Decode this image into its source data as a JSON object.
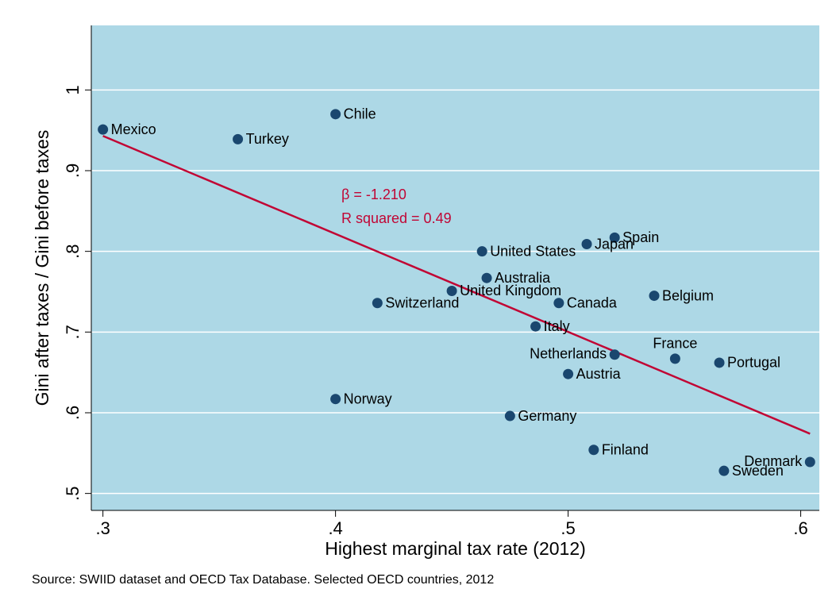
{
  "chart_data": {
    "type": "scatter",
    "x_label": "Highest marginal tax rate (2012)",
    "y_label": "Gini after taxes / Gini before taxes",
    "note": "Source: SWIID dataset and OECD Tax Database. Selected OECD countries, 2012",
    "series": [
      {
        "color": "#1a476f",
        "labels": [
          "Mexico",
          "Chile",
          "Turkey",
          "Spain",
          "Japan",
          "United States",
          "Australia",
          "United Kingdom",
          "Switzerland",
          "Canada",
          "Belgium",
          "Italy",
          "Netherlands",
          "France",
          "Portugal",
          "Austria",
          "Norway",
          "Germany",
          "Finland",
          "Denmark",
          "Sweden"
        ],
        "x": [
          0.3,
          0.4,
          0.358,
          0.52,
          0.508,
          0.463,
          0.465,
          0.45,
          0.418,
          0.496,
          0.537,
          0.486,
          0.52,
          0.546,
          0.565,
          0.5,
          0.4,
          0.475,
          0.511,
          0.604,
          0.567
        ],
        "values": [
          0.951,
          0.97,
          0.939,
          0.817,
          0.809,
          0.8,
          0.767,
          0.751,
          0.736,
          0.736,
          0.745,
          0.707,
          0.672,
          0.667,
          0.662,
          0.648,
          0.617,
          0.596,
          0.554,
          0.539,
          0.528
        ]
      }
    ],
    "fit": {
      "color": "#c10534",
      "x": [
        0.3,
        0.604
      ],
      "values": [
        0.943,
        0.574
      ]
    },
    "annotations": [
      "β = -1.210",
      "R squared = 0.49"
    ],
    "xlim": [
      0.295,
      0.608
    ],
    "ylim": [
      0.479,
      1.08
    ],
    "xticks": [
      {
        "value": 0.3,
        "label": ".3"
      },
      {
        "value": 0.4,
        "label": ".4"
      },
      {
        "value": 0.5,
        "label": ".5"
      },
      {
        "value": 0.6,
        "label": ".6"
      }
    ],
    "yticks": [
      {
        "value": 0.5,
        "label": ".5"
      },
      {
        "value": 0.6,
        "label": ".6"
      },
      {
        "value": 0.7,
        "label": ".7"
      },
      {
        "value": 0.8,
        "label": ".8"
      },
      {
        "value": 0.9,
        "label": ".9"
      },
      {
        "value": 1,
        "label": "1"
      }
    ],
    "grid": true,
    "plot_background": "#add8e6"
  }
}
